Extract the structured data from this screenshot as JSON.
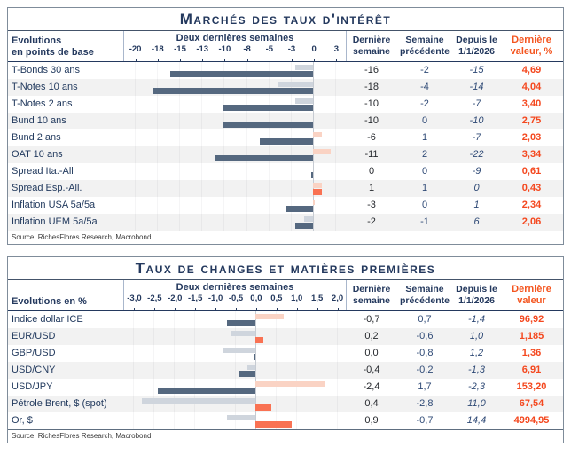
{
  "colors": {
    "navy_text": "#24395E",
    "bar_last_negative": "#55687F",
    "bar_prev_negative": "#CFD5DD",
    "bar_last_positive": "#F97253",
    "bar_prev_positive": "#FAD3C4",
    "last_value_orange": "#F4481F",
    "row_stripe": "#F2F2F2"
  },
  "chart_data": [
    {
      "type": "bar",
      "title": "Marchés des taux d'intérêt",
      "unit_label": {
        "line1": "Evolutions",
        "line2": "en points de base"
      },
      "group_label": "Deux dernières semaines",
      "legend_position": "none",
      "grid": true,
      "axis": {
        "min": -21.25,
        "max": 3.75,
        "tick_values": [
          -20,
          -17.5,
          -15,
          -12.5,
          -10,
          -7.5,
          -5,
          -2.5,
          0,
          2.5
        ],
        "tick_labels": [
          "-20",
          "-18",
          "-15",
          "-13",
          "-10",
          "-8",
          "-5",
          "-3",
          "0",
          "3"
        ]
      },
      "columns": [
        {
          "line1": "Dernière",
          "line2": "semaine"
        },
        {
          "line1": "Semaine",
          "line2": "précédente"
        },
        {
          "line1": "Depuis le",
          "line2": "1/1/2026"
        },
        {
          "line1": "Dernière",
          "line2": "valeur, %"
        }
      ],
      "rows": [
        {
          "label": "T-Bonds 30 ans",
          "last_week": "-16",
          "prev_week": "-2",
          "since": "-15",
          "value": "4,69",
          "last_bar": -16,
          "prev_bar": -2
        },
        {
          "label": "T-Notes 10 ans",
          "last_week": "-18",
          "prev_week": "-4",
          "since": "-14",
          "value": "4,04",
          "last_bar": -18,
          "prev_bar": -4
        },
        {
          "label": "T-Notes 2 ans",
          "last_week": "-10",
          "prev_week": "-2",
          "since": "-7",
          "value": "3,40",
          "last_bar": -10,
          "prev_bar": -2
        },
        {
          "label": "Bund 10 ans",
          "last_week": "-10",
          "prev_week": "0",
          "since": "-10",
          "value": "2,75",
          "last_bar": -10,
          "prev_bar": 0
        },
        {
          "label": "Bund 2 ans",
          "last_week": "-6",
          "prev_week": "1",
          "since": "-7",
          "value": "2,03",
          "last_bar": -6,
          "prev_bar": 1
        },
        {
          "label": "OAT 10 ans",
          "last_week": "-11",
          "prev_week": "2",
          "since": "-22",
          "value": "3,34",
          "last_bar": -11,
          "prev_bar": 2
        },
        {
          "label": "Spread Ita.-All",
          "last_week": "0",
          "prev_week": "0",
          "since": "-9",
          "value": "0,61",
          "last_bar": -0.2,
          "prev_bar": 0
        },
        {
          "label": "Spread Esp.-All.",
          "last_week": "1",
          "prev_week": "1",
          "since": "0",
          "value": "0,43",
          "last_bar": 1,
          "prev_bar": 1
        },
        {
          "label": "Inflation USA 5a/5a",
          "last_week": "-3",
          "prev_week": "0",
          "since": "1",
          "value": "2,34",
          "last_bar": -3,
          "prev_bar": 0.2
        },
        {
          "label": "Inflation UEM 5a/5a",
          "last_week": "-2",
          "prev_week": "-1",
          "since": "6",
          "value": "2,06",
          "last_bar": -2,
          "prev_bar": -1
        }
      ],
      "source": "Source: RichesFlores Research, Macrobond"
    },
    {
      "type": "bar",
      "title": "Taux de changes et matières premières",
      "unit_label": {
        "line1": "Evolutions en %",
        "line2": ""
      },
      "group_label": "Deux dernières semaines",
      "legend_position": "none",
      "grid": true,
      "axis": {
        "min": -3.25,
        "max": 2.25,
        "tick_values": [
          -3,
          -2.5,
          -2,
          -1.5,
          -1,
          -0.5,
          0,
          0.5,
          1,
          1.5,
          2
        ],
        "tick_labels": [
          "-3,0",
          "-2,5",
          "-2,0",
          "-1,5",
          "-1,0",
          "-0,5",
          "0,0",
          "0,5",
          "1,0",
          "1,5",
          "2,0"
        ]
      },
      "columns": [
        {
          "line1": "Dernière",
          "line2": "semaine"
        },
        {
          "line1": "Semaine",
          "line2": "précédente"
        },
        {
          "line1": "Depuis le",
          "line2": "1/1/2026"
        },
        {
          "line1": "Dernière",
          "line2": "valeur"
        }
      ],
      "rows": [
        {
          "label": "Indice dollar ICE",
          "last_week": "-0,7",
          "prev_week": "0,7",
          "since": "-1,4",
          "value": "96,92",
          "last_bar": -0.7,
          "prev_bar": 0.7
        },
        {
          "label": "EUR/USD",
          "last_week": "0,2",
          "prev_week": "-0,6",
          "since": "1,0",
          "value": "1,185",
          "last_bar": 0.2,
          "prev_bar": -0.6
        },
        {
          "label": "GBP/USD",
          "last_week": "0,0",
          "prev_week": "-0,8",
          "since": "1,2",
          "value": "1,36",
          "last_bar": -0.03,
          "prev_bar": -0.8
        },
        {
          "label": "USD/CNY",
          "last_week": "-0,4",
          "prev_week": "-0,2",
          "since": "-1,3",
          "value": "6,91",
          "last_bar": -0.4,
          "prev_bar": -0.2
        },
        {
          "label": "USD/JPY",
          "last_week": "-2,4",
          "prev_week": "1,7",
          "since": "-2,3",
          "value": "153,20",
          "last_bar": -2.4,
          "prev_bar": 1.7
        },
        {
          "label": "Pétrole Brent, $ (spot)",
          "last_week": "0,4",
          "prev_week": "-2,8",
          "since": "11,0",
          "value": "67,54",
          "last_bar": 0.4,
          "prev_bar": -2.8
        },
        {
          "label": "Or, $",
          "last_week": "0,9",
          "prev_week": "-0,7",
          "since": "14,4",
          "value": "4994,95",
          "last_bar": 0.9,
          "prev_bar": -0.7
        }
      ],
      "source": "Source: RichesFlores Research, Macrobond"
    }
  ]
}
